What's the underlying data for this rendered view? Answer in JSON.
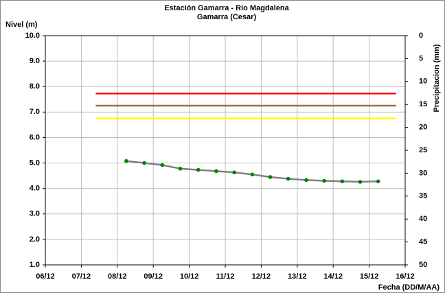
{
  "chart_data": {
    "type": "line",
    "title": "Estación Gamarra - Rio Magdalena",
    "subtitle": "Gamarra (Cesar)",
    "y_label": "Nivel (m)",
    "y2_label": "Precipitacion (mm)",
    "x_label": "Fecha (DD/M/AA)",
    "xlim": [
      6,
      16
    ],
    "xticks": [
      {
        "value": 6,
        "label": "06/12"
      },
      {
        "value": 7,
        "label": "07/12"
      },
      {
        "value": 8,
        "label": "08/12"
      },
      {
        "value": 9,
        "label": "09/12"
      },
      {
        "value": 10,
        "label": "10/12"
      },
      {
        "value": 11,
        "label": "11/12"
      },
      {
        "value": 12,
        "label": "12/12"
      },
      {
        "value": 13,
        "label": "13/12"
      },
      {
        "value": 14,
        "label": "14/12"
      },
      {
        "value": 15,
        "label": "15/12"
      },
      {
        "value": 16,
        "label": "16/12"
      }
    ],
    "ylim": [
      1,
      10
    ],
    "yticks": [
      {
        "value": 1,
        "label": "1.0"
      },
      {
        "value": 2,
        "label": "2.0"
      },
      {
        "value": 3,
        "label": "3.0"
      },
      {
        "value": 4,
        "label": "4.0"
      },
      {
        "value": 5,
        "label": "5.0"
      },
      {
        "value": 6,
        "label": "6.0"
      },
      {
        "value": 7,
        "label": "7.0"
      },
      {
        "value": 8,
        "label": "8.0"
      },
      {
        "value": 9,
        "label": "9.0"
      },
      {
        "value": 10,
        "label": "10.0"
      }
    ],
    "y2lim": [
      50,
      0
    ],
    "y2ticks": [
      0,
      5,
      10,
      15,
      20,
      25,
      30,
      35,
      40,
      45,
      50
    ],
    "grid": true,
    "series": [
      {
        "color": "#ff0000",
        "x": [
          7.4,
          15.75
        ],
        "values": [
          7.73,
          7.73
        ]
      },
      {
        "color": "#a0703a",
        "x": [
          7.4,
          15.75
        ],
        "values": [
          7.25,
          7.25
        ]
      },
      {
        "color": "#ffff00",
        "x": [
          7.4,
          15.75
        ],
        "values": [
          6.75,
          6.75
        ]
      },
      {
        "color": "#808080",
        "marker_color": "#008000",
        "x": [
          8.25,
          8.75,
          9.25,
          9.75,
          10.25,
          10.75,
          11.25,
          11.75,
          12.25,
          12.75,
          13.25,
          13.75,
          14.25,
          14.75,
          15.25
        ],
        "values": [
          5.08,
          5.0,
          4.92,
          4.78,
          4.73,
          4.68,
          4.63,
          4.55,
          4.45,
          4.38,
          4.33,
          4.3,
          4.28,
          4.26,
          4.28
        ]
      }
    ]
  }
}
